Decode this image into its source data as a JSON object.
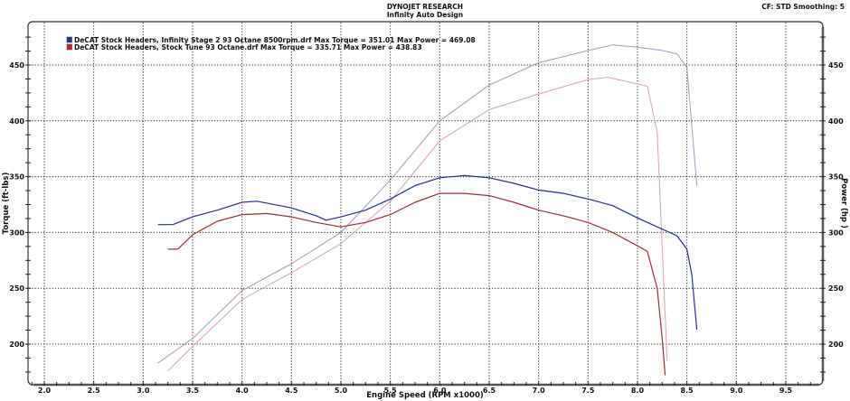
{
  "header": {
    "title": "DYNOJET RESEARCH",
    "subtitle": "Infinity Auto Design",
    "cf_info": "CF: STD  Smoothing: 5"
  },
  "colors": {
    "blue_torque": "#2a2f8a",
    "blue_power": "#9c9cc8",
    "red_torque": "#9a3232",
    "red_power": "#d9a4a8",
    "grid": "#222222",
    "frame": "#333333"
  },
  "chart_data": {
    "type": "line",
    "title": "DYNOJET RESEARCH",
    "subtitle": "Infinity Auto Design",
    "xlabel": "Engine Speed (RPM x1000)",
    "ylabel": "Torque (ft-lbs)",
    "y2label": "Power (hp )",
    "xlim": [
      1.75,
      9.85
    ],
    "ylim": [
      170,
      488
    ],
    "y2lim": [
      170,
      488
    ],
    "xticks": [
      "2.0",
      "2.5",
      "3.0",
      "3.5",
      "4.0",
      "4.5",
      "5.0",
      "5.5",
      "6.0",
      "6.5",
      "7.0",
      "7.5",
      "8.0",
      "8.5",
      "9.0",
      "9.5"
    ],
    "yticks": [
      "200",
      "250",
      "300",
      "350",
      "400",
      "450"
    ],
    "y2ticks": [
      "200",
      "250",
      "300",
      "350",
      "400",
      "450"
    ],
    "grid": true,
    "legend_position": "top-left",
    "legend": [
      "DeCAT Stock Headers, Infinity Stage 2 93 Octane 8500rpm.drf Max Torque = 351.01     Max Power = 469.08",
      "DeCAT Stock Headers, Stock Tune 93 Octane.drf Max Torque = 335.71     Max Power = 438.83"
    ],
    "series": [
      {
        "name": "Infinity Stage 2 93 Octane 8500rpm - Torque",
        "run": "DeCAT Stock Headers, Infinity Stage 2 93 Octane 8500rpm.drf",
        "quantity": "torque",
        "max": 351.01,
        "color": "#2a2f8a",
        "x": [
          3.15,
          3.3,
          3.5,
          3.75,
          4.0,
          4.15,
          4.5,
          4.75,
          4.85,
          5.0,
          5.25,
          5.5,
          5.75,
          6.0,
          6.25,
          6.5,
          6.75,
          7.0,
          7.25,
          7.5,
          7.75,
          8.0,
          8.25,
          8.4,
          8.5,
          8.55,
          8.6
        ],
        "values": [
          307,
          307,
          314,
          320,
          327,
          328,
          322,
          315,
          311,
          314,
          320,
          330,
          342,
          349,
          351,
          349,
          344,
          338,
          335,
          330,
          324,
          313,
          303,
          297,
          285,
          262,
          213
        ]
      },
      {
        "name": "Stock Tune 93 Octane - Torque",
        "run": "DeCAT Stock Headers, Stock Tune 93 Octane.drf",
        "quantity": "torque",
        "max": 335.71,
        "color": "#9a3232",
        "x": [
          3.25,
          3.35,
          3.5,
          3.75,
          4.0,
          4.25,
          4.5,
          4.75,
          5.0,
          5.25,
          5.5,
          5.75,
          6.0,
          6.25,
          6.5,
          6.75,
          7.0,
          7.25,
          7.5,
          7.75,
          8.0,
          8.1,
          8.2,
          8.25,
          8.28
        ],
        "values": [
          285,
          285,
          298,
          310,
          316,
          317,
          314,
          309,
          305,
          309,
          316,
          327,
          335,
          335,
          333,
          327,
          320,
          315,
          309,
          300,
          288,
          283,
          250,
          205,
          172
        ]
      },
      {
        "name": "Infinity Stage 2 93 Octane 8500rpm - Power",
        "run": "DeCAT Stock Headers, Infinity Stage 2 93 Octane 8500rpm.drf",
        "quantity": "power",
        "max": 469.08,
        "color": "#9c9cc8",
        "x": [
          3.15,
          3.5,
          4.0,
          4.5,
          5.0,
          5.5,
          6.0,
          6.5,
          7.0,
          7.5,
          7.75,
          8.0,
          8.25,
          8.4,
          8.5,
          8.6
        ],
        "values": [
          183,
          205,
          248,
          272,
          300,
          347,
          400,
          432,
          452,
          463,
          468,
          466,
          463,
          460,
          448,
          342
        ]
      },
      {
        "name": "Stock Tune 93 Octane - Power",
        "run": "DeCAT Stock Headers, Stock Tune 93 Octane.drf",
        "quantity": "power",
        "max": 438.83,
        "color": "#d9a4a8",
        "x": [
          3.25,
          3.5,
          4.0,
          4.5,
          5.0,
          5.5,
          6.0,
          6.5,
          7.0,
          7.5,
          7.7,
          8.0,
          8.1,
          8.2,
          8.3
        ],
        "values": [
          176,
          198,
          240,
          264,
          290,
          328,
          382,
          410,
          424,
          437,
          439,
          433,
          431,
          390,
          185
        ]
      }
    ]
  }
}
